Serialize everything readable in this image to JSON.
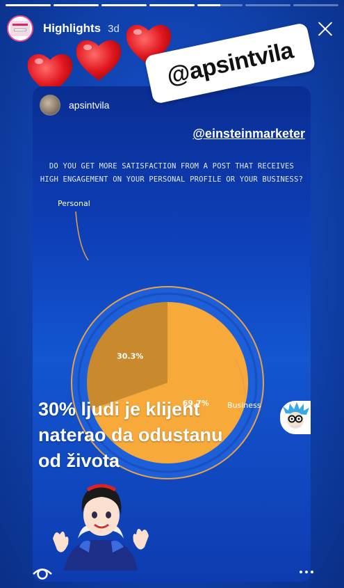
{
  "progress": {
    "segments": 7,
    "completed": 4,
    "current_fill": 0.5
  },
  "header": {
    "title": "Highlights",
    "age": "3d",
    "close_icon": "close-icon"
  },
  "stickers": {
    "mention": "@apsintvila",
    "hearts": [
      "heart-emoji",
      "heart-emoji",
      "heart-emoji"
    ]
  },
  "post": {
    "username": "apsintvila",
    "source_mention": "@einsteinmarketer",
    "question": "DO YOU GET MORE SATISFACTION FROM A POST THAT RECEIVES HIGH ENGAGEMENT ON YOUR PERSONAL PROFILE OR YOUR BUSINESS?",
    "headline": "30% ljudi je klijent naterao da odustanu od života"
  },
  "chart_data": {
    "type": "pie",
    "categories": [
      "Personal",
      "Business"
    ],
    "values": [
      30.3,
      69.7
    ],
    "value_labels": [
      "30.3%",
      "69.7%"
    ],
    "colors": {
      "Personal": "#c98a2e",
      "Business": "#f7a93a"
    }
  },
  "footer": {
    "viewers_icon": "eye-icon",
    "more_icon": "more-icon"
  },
  "colors": {
    "background": "#1247b8",
    "accent": "#e64b8f"
  }
}
